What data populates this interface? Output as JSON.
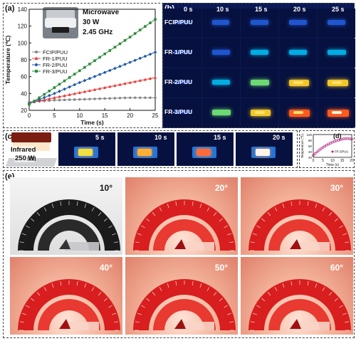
{
  "panel_labels": {
    "a": "(a)",
    "b": "(b)",
    "c": "(c)",
    "d": "(d)",
    "e": "(e)"
  },
  "microwave": {
    "title": "Microwave",
    "power": "30 W",
    "freq": "2.45 GHz"
  },
  "infrared": {
    "title": "Infrared",
    "power": "250 W"
  },
  "panel_b": {
    "rows": [
      "FCIP/PUU",
      "FR-1/PUU",
      "FR-2/PUU",
      "FR-3/PUU"
    ],
    "times": [
      "0 s",
      "10 s",
      "15 s",
      "20 s",
      "25 s"
    ]
  },
  "panel_c": {
    "times": [
      "5 s",
      "10 s",
      "15 s",
      "20 s"
    ]
  },
  "panel_e": {
    "angles": [
      "10°",
      "20°",
      "30°",
      "40°",
      "50°",
      "60°"
    ]
  },
  "chart_data": [
    {
      "type": "line",
      "panel": "a",
      "xlabel": "Time (s)",
      "ylabel": "Temperature (℃)",
      "xlim": [
        0,
        25
      ],
      "ylim": [
        20,
        140
      ],
      "xticks": [
        0,
        5,
        10,
        15,
        20,
        25
      ],
      "yticks": [
        20,
        40,
        60,
        80,
        100,
        120,
        140
      ],
      "legend_position": "left",
      "series": [
        {
          "name": "FCIP/PUU",
          "color": "#888888",
          "marker": "circle",
          "x": [
            0,
            5,
            10,
            15,
            20,
            25
          ],
          "y": [
            30,
            32,
            33,
            34,
            35,
            35
          ]
        },
        {
          "name": "FR-1/PUU",
          "color": "#e53935",
          "marker": "triangle",
          "x": [
            0,
            5,
            10,
            15,
            20,
            25
          ],
          "y": [
            29,
            35,
            41,
            47,
            53,
            59
          ]
        },
        {
          "name": "FR-2/PUU",
          "color": "#1e5aa8",
          "marker": "diamond",
          "x": [
            0,
            5,
            10,
            15,
            20,
            25
          ],
          "y": [
            28,
            40,
            53,
            65,
            77,
            89
          ]
        },
        {
          "name": "FR-3/PUU",
          "color": "#2e8b3a",
          "marker": "square",
          "x": [
            0,
            5,
            10,
            15,
            20,
            25
          ],
          "y": [
            27,
            47,
            67,
            87,
            107,
            128
          ]
        }
      ]
    },
    {
      "type": "scatter",
      "panel": "d",
      "xlabel": "Time (s)",
      "ylabel": "Temperature (℃)",
      "xlim": [
        0,
        20
      ],
      "ylim": [
        20,
        100
      ],
      "xticks": [
        0,
        5,
        10,
        15,
        20
      ],
      "yticks": [
        20,
        40,
        60,
        80,
        100
      ],
      "legend_position": "center-right",
      "series": [
        {
          "name": "FR-3/PUU",
          "color": "#b0157a",
          "marker": "circle",
          "x": [
            0,
            1,
            2,
            3,
            4,
            5,
            6,
            7,
            8,
            9,
            10,
            11,
            12,
            13,
            14,
            15,
            16,
            17,
            18,
            19,
            20
          ],
          "y": [
            27,
            33,
            39,
            45,
            50,
            55,
            59,
            63,
            67,
            70,
            73,
            76,
            78,
            80,
            82,
            84,
            85,
            86,
            86,
            85,
            84
          ]
        }
      ]
    }
  ]
}
